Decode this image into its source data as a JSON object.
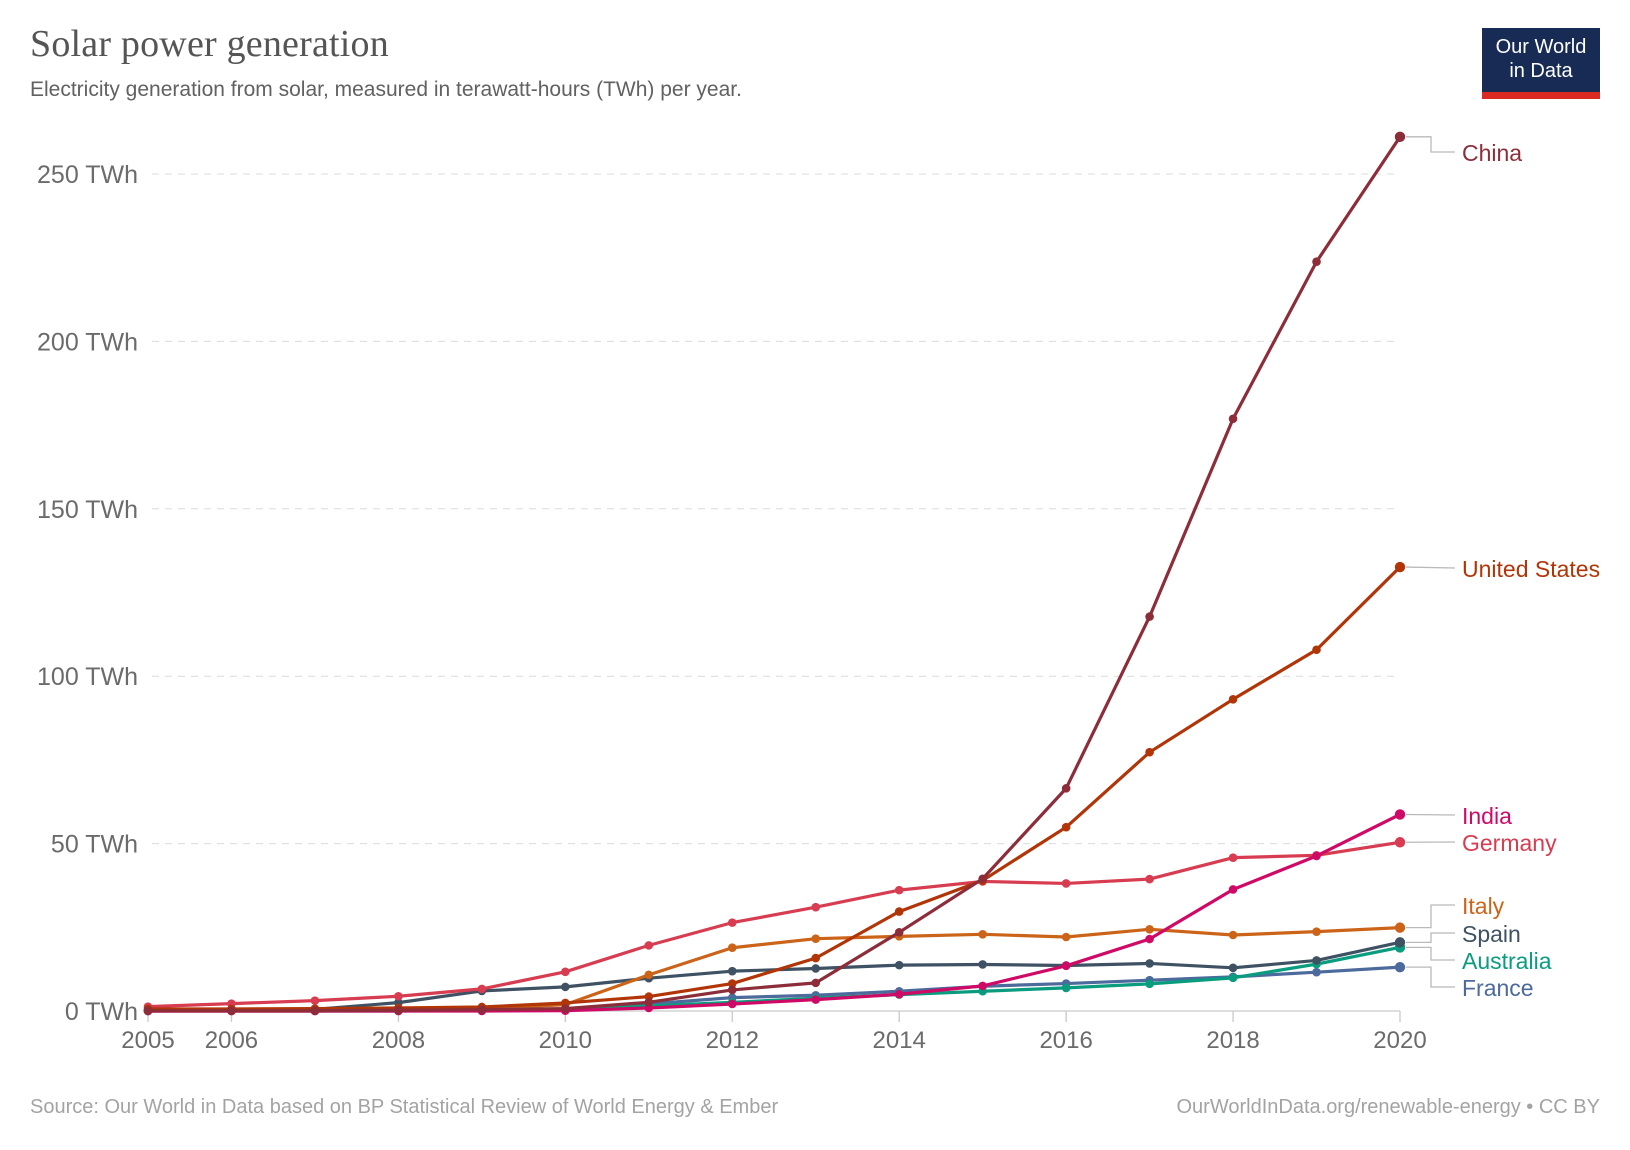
{
  "header": {
    "title": "Solar power generation",
    "subtitle": "Electricity generation from solar, measured in terawatt-hours (TWh) per year.",
    "logo": {
      "line1": "Our World",
      "line2": "in Data"
    }
  },
  "footer": {
    "source": "Source: Our World in Data based on BP Statistical Review of World Energy & Ember",
    "license": "OurWorldInData.org/renewable-energy • CC BY"
  },
  "chart_data": {
    "type": "line",
    "title": "Solar power generation",
    "xlabel": "",
    "ylabel": "",
    "x": [
      2005,
      2006,
      2007,
      2008,
      2009,
      2010,
      2011,
      2012,
      2013,
      2014,
      2015,
      2016,
      2017,
      2018,
      2019,
      2020
    ],
    "xlim": [
      2005,
      2020
    ],
    "ylim": [
      0,
      265
    ],
    "x_tick_years": [
      2005,
      2006,
      2008,
      2010,
      2012,
      2014,
      2016,
      2018,
      2020
    ],
    "x_tick_labels": [
      "2005",
      "2006",
      "2008",
      "2010",
      "2012",
      "2014",
      "2016",
      "2018",
      "2020"
    ],
    "y_ticks": [
      0,
      50,
      100,
      150,
      200,
      250
    ],
    "y_tick_labels": [
      "0 TWh",
      "50 TWh",
      "100 TWh",
      "150 TWh",
      "200 TWh",
      "250 TWh"
    ],
    "grid": "horizontal-dashed",
    "legend_position": "right-end-labels",
    "unit": "TWh",
    "series": [
      {
        "name": "China",
        "color": "#8C2D39",
        "values": [
          0.1,
          0.1,
          0.1,
          0.2,
          0.4,
          0.7,
          2.6,
          6.3,
          8.4,
          23.5,
          39.5,
          66.5,
          117.8,
          176.9,
          223.8,
          261.1
        ]
      },
      {
        "name": "United States",
        "color": "#B13507",
        "values": [
          0.6,
          0.6,
          0.7,
          0.9,
          1.2,
          2.4,
          4.3,
          8.2,
          15.8,
          29.7,
          39.0,
          54.9,
          77.3,
          93.1,
          107.9,
          132.6
        ]
      },
      {
        "name": "India",
        "color": "#CF0A66",
        "values": [
          0.0,
          0.0,
          0.0,
          0.0,
          0.0,
          0.1,
          0.9,
          2.1,
          3.4,
          5.0,
          7.5,
          13.5,
          21.5,
          36.3,
          46.3,
          58.7
        ]
      },
      {
        "name": "Germany",
        "color": "#D73C50",
        "values": [
          1.3,
          2.2,
          3.1,
          4.4,
          6.6,
          11.7,
          19.6,
          26.4,
          31.0,
          36.1,
          38.7,
          38.1,
          39.4,
          45.8,
          46.5,
          50.4
        ]
      },
      {
        "name": "Italy",
        "color": "#CB6418",
        "values": [
          0.0,
          0.0,
          0.0,
          0.2,
          0.7,
          1.9,
          10.8,
          18.9,
          21.6,
          22.3,
          22.9,
          22.1,
          24.4,
          22.7,
          23.7,
          24.9
        ]
      },
      {
        "name": "Spain",
        "color": "#3E5264",
        "values": [
          0.0,
          0.1,
          0.5,
          2.5,
          6.0,
          7.2,
          9.8,
          11.9,
          12.7,
          13.7,
          13.9,
          13.6,
          14.2,
          12.9,
          15.1,
          20.5
        ]
      },
      {
        "name": "Australia",
        "color": "#0A9C7E",
        "values": [
          0.1,
          0.1,
          0.1,
          0.2,
          0.3,
          0.4,
          1.5,
          2.6,
          3.8,
          4.9,
          5.9,
          6.9,
          8.1,
          9.9,
          14.0,
          19.0
        ]
      },
      {
        "name": "France",
        "color": "#4C6A9C",
        "values": [
          0.0,
          0.0,
          0.0,
          0.0,
          0.2,
          0.6,
          2.1,
          4.0,
          4.7,
          5.9,
          7.4,
          8.2,
          9.2,
          10.2,
          11.6,
          13.1
        ]
      }
    ]
  }
}
